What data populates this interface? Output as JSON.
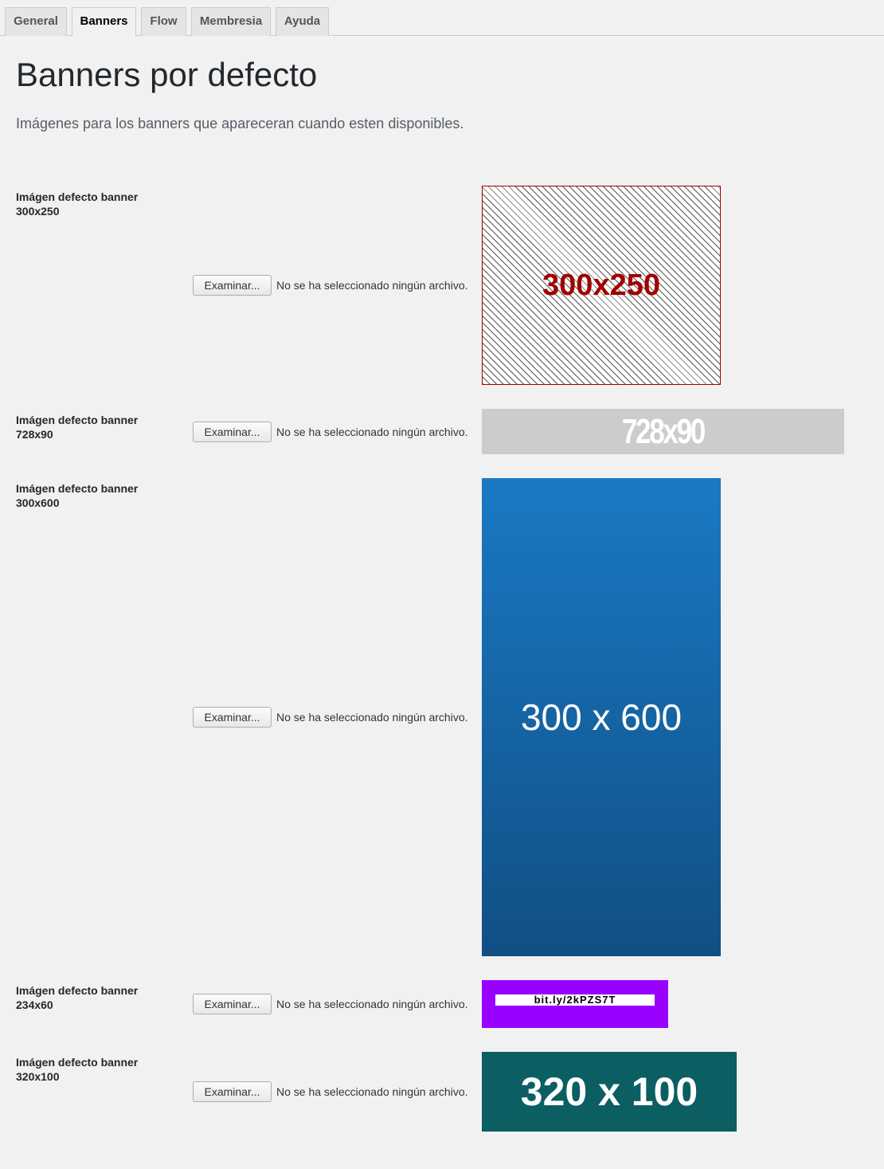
{
  "tabs": [
    {
      "label": "General",
      "active": false
    },
    {
      "label": "Banners",
      "active": true
    },
    {
      "label": "Flow",
      "active": false
    },
    {
      "label": "Membresia",
      "active": false
    },
    {
      "label": "Ayuda",
      "active": false
    }
  ],
  "page": {
    "title": "Banners por defecto",
    "description": "Imágenes para los banners que apareceran cuando esten disponibles."
  },
  "rows": [
    {
      "label": "Imágen defecto banner 300x250",
      "button": "Examinar...",
      "status": "No se ha seleccionado ningún archivo.",
      "preview_text": "300x250",
      "preview_color": "#a00000"
    },
    {
      "label": "Imágen defecto banner 728x90",
      "button": "Examinar...",
      "status": "No se ha seleccionado ningún archivo.",
      "preview_text": "728x90",
      "preview_color": "#cccccc"
    },
    {
      "label": "Imágen defecto banner 300x600",
      "button": "Examinar...",
      "status": "No se ha seleccionado ningún archivo.",
      "preview_text": "300 x 600",
      "preview_color": "#1a79c4"
    },
    {
      "label": "Imágen defecto banner 234x60",
      "button": "Examinar...",
      "status": "No se ha seleccionado ningún archivo.",
      "preview_text": "bit.ly/2kPZS7T",
      "preview_color": "#9900ff"
    },
    {
      "label": "Imágen defecto banner 320x100",
      "button": "Examinar...",
      "status": "No se ha seleccionado ningún archivo.",
      "preview_text": "320 x 100",
      "preview_color": "#0b5f63"
    }
  ]
}
